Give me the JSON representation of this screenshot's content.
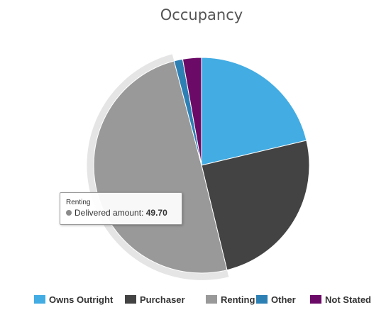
{
  "chart_data": {
    "type": "pie",
    "title": "Occupancy",
    "categories": [
      "Owns Outright",
      "Purchaser",
      "Renting",
      "Other",
      "Not Stated"
    ],
    "values": [
      21.3,
      24.9,
      49.7,
      1.3,
      2.8
    ],
    "colors": [
      "#42ace3",
      "#434343",
      "#999999",
      "#2d80b4",
      "#6c0a67"
    ],
    "hovered_slice": "Renting",
    "legend_position": "bottom"
  },
  "tooltip": {
    "series": "Renting",
    "label": "Delivered amount:",
    "value": "49.70",
    "dot_color": "#8a8a8a"
  }
}
